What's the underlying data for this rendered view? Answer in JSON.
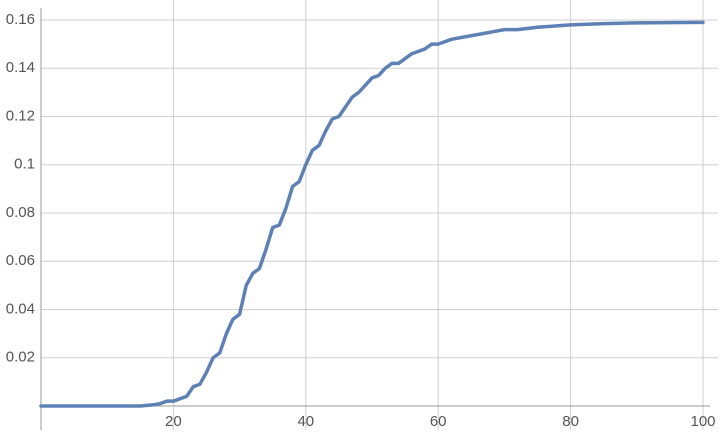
{
  "chart_data": {
    "type": "line",
    "x": [
      0,
      5,
      10,
      15,
      17,
      18,
      19,
      20,
      21,
      22,
      23,
      24,
      25,
      26,
      27,
      28,
      29,
      30,
      31,
      32,
      33,
      34,
      35,
      36,
      37,
      38,
      39,
      40,
      41,
      42,
      43,
      44,
      45,
      46,
      47,
      48,
      49,
      50,
      51,
      52,
      53,
      54,
      55,
      56,
      57,
      58,
      59,
      60,
      62,
      64,
      66,
      68,
      70,
      72,
      75,
      80,
      85,
      90,
      100
    ],
    "series": [
      {
        "color": "#5e81b5",
        "values": [
          0,
          0,
          0,
          0,
          0.0005,
          0.001,
          0.002,
          0.002,
          0.003,
          0.004,
          0.008,
          0.009,
          0.014,
          0.02,
          0.022,
          0.03,
          0.036,
          0.038,
          0.05,
          0.055,
          0.057,
          0.065,
          0.074,
          0.075,
          0.082,
          0.091,
          0.093,
          0.1,
          0.106,
          0.108,
          0.114,
          0.119,
          0.12,
          0.124,
          0.128,
          0.13,
          0.133,
          0.136,
          0.137,
          0.14,
          0.142,
          0.142,
          0.144,
          0.146,
          0.147,
          0.148,
          0.15,
          0.15,
          0.152,
          0.153,
          0.154,
          0.155,
          0.156,
          0.156,
          0.157,
          0.158,
          0.1585,
          0.1588,
          0.159
        ]
      }
    ],
    "xlim": [
      0,
      100
    ],
    "xticks": [
      20,
      40,
      60,
      80,
      100
    ],
    "ylim": [
      0,
      0.16
    ],
    "yticks": [
      0.02,
      0.04,
      0.06,
      0.08,
      0.1,
      0.12,
      0.14,
      0.16
    ],
    "grid": true
  }
}
